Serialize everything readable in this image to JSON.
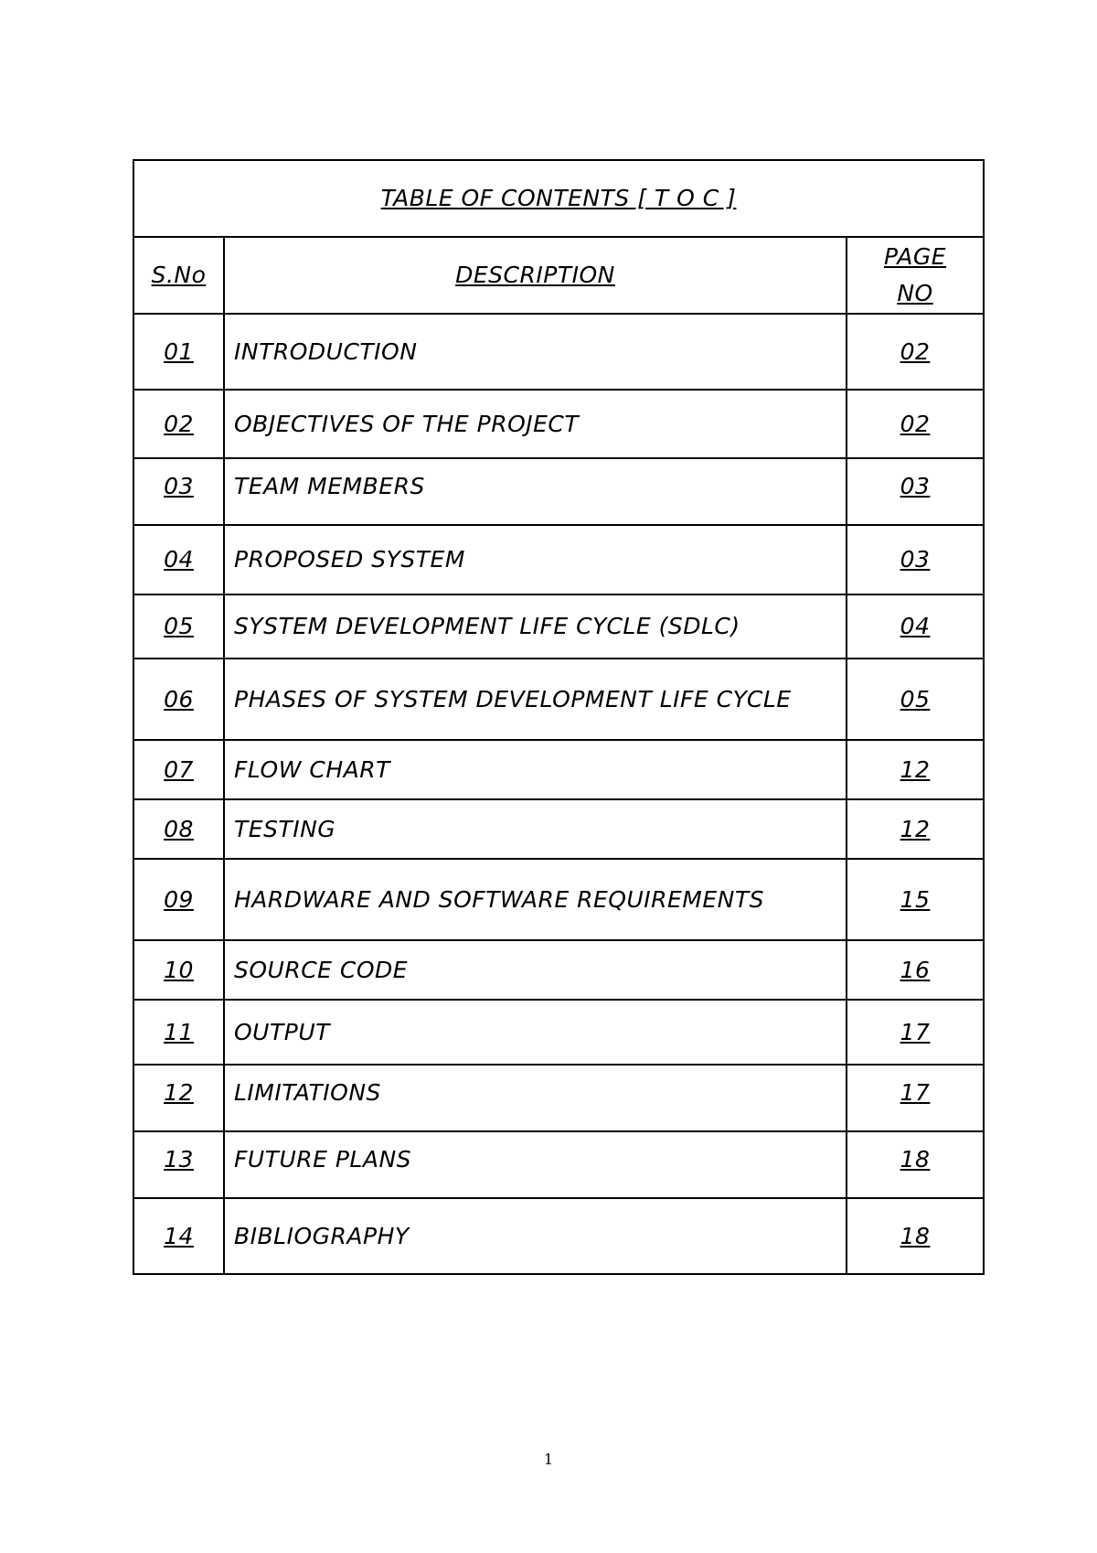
{
  "title": "TABLE OF CONTENTS [ T O C ]",
  "headers": {
    "sno": "S.No",
    "description": "DESCRIPTION",
    "page_line1": "PAGE",
    "page_line2": "NO"
  },
  "rows": [
    {
      "sno": "01",
      "description": "INTRODUCTION",
      "page": "02"
    },
    {
      "sno": "02",
      "description": "OBJECTIVES OF THE PROJECT",
      "page": "02"
    },
    {
      "sno": "03",
      "description": "TEAM MEMBERS",
      "page": "03"
    },
    {
      "sno": "04",
      "description": "PROPOSED SYSTEM",
      "page": "03"
    },
    {
      "sno": "05",
      "description": "SYSTEM DEVELOPMENT LIFE CYCLE (SDLC)",
      "page": "04"
    },
    {
      "sno": "06",
      "description": "PHASES OF SYSTEM DEVELOPMENT LIFE CYCLE",
      "page": "05"
    },
    {
      "sno": "07",
      "description": "FLOW CHART",
      "page": "12"
    },
    {
      "sno": "08",
      "description": "TESTING",
      "page": "12"
    },
    {
      "sno": "09",
      "description": "HARDWARE AND SOFTWARE REQUIREMENTS",
      "page": "15"
    },
    {
      "sno": "10",
      "description": "SOURCE CODE",
      "page": "16"
    },
    {
      "sno": "11",
      "description": "OUTPUT",
      "page": "17"
    },
    {
      "sno": "12",
      "description": "LIMITATIONS",
      "page": "17"
    },
    {
      "sno": "13",
      "description": "FUTURE PLANS",
      "page": "18"
    },
    {
      "sno": "14",
      "description": "BIBLIOGRAPHY",
      "page": "18"
    }
  ],
  "page_number": "1"
}
